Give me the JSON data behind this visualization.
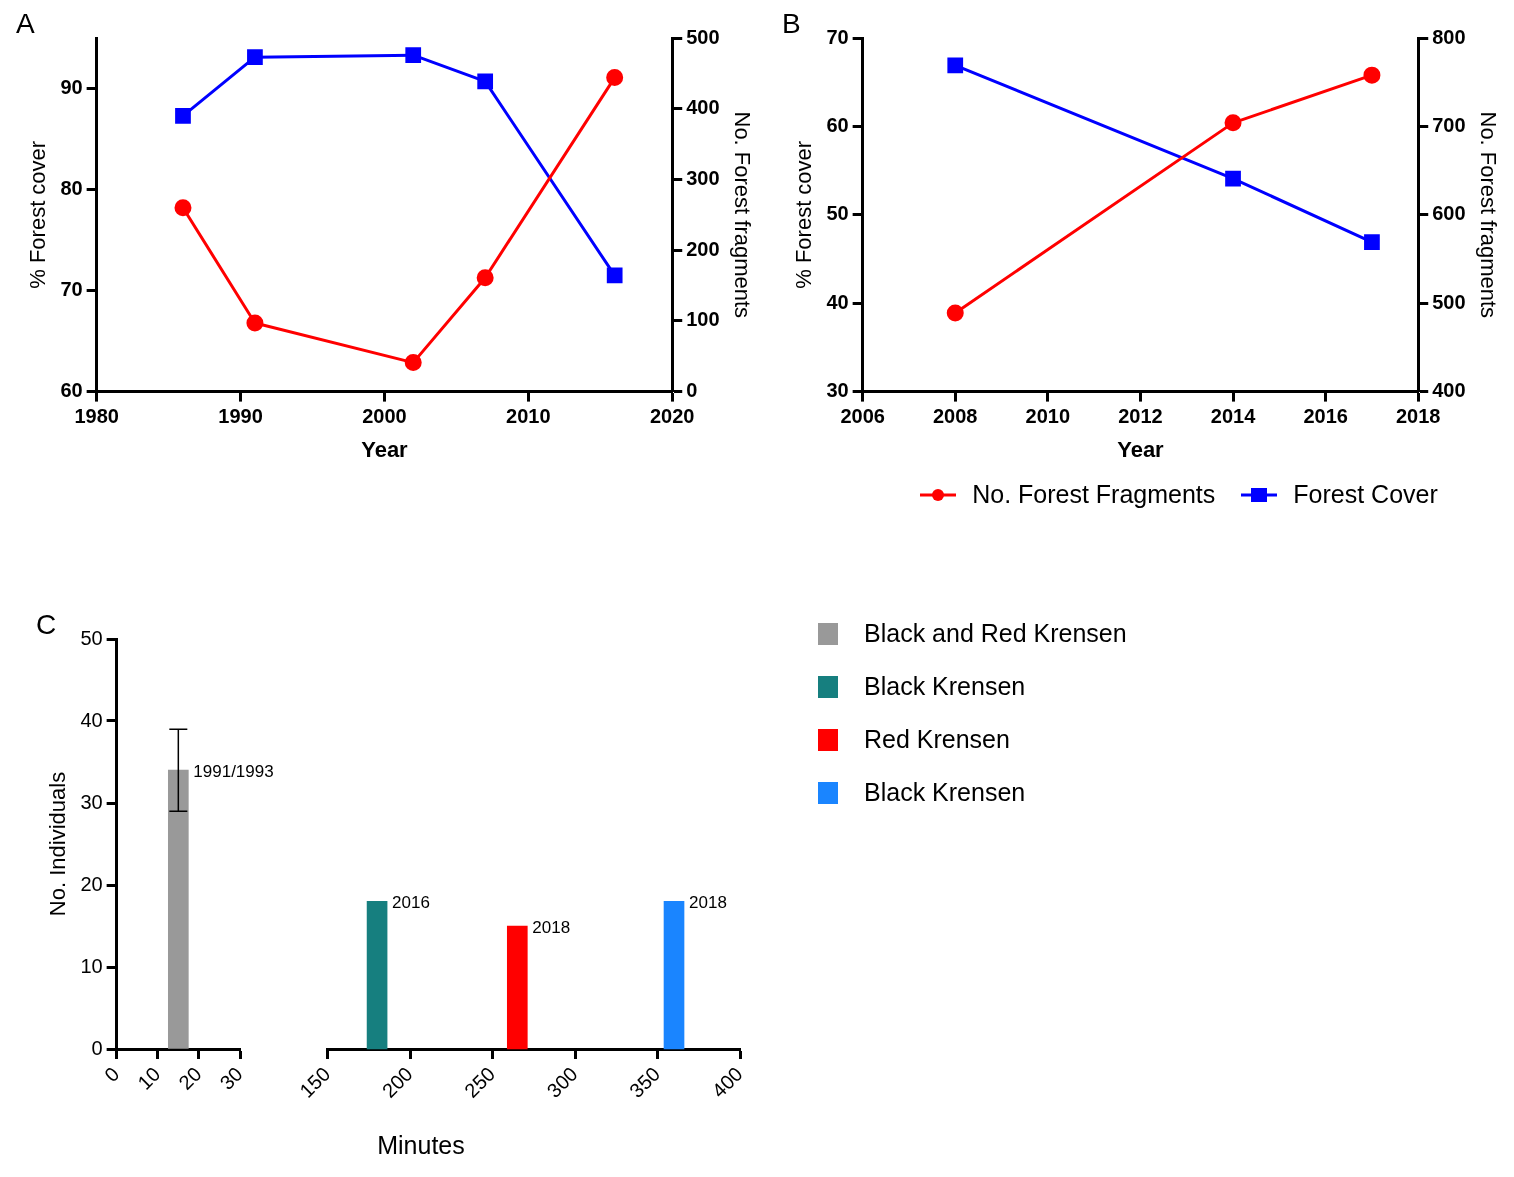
{
  "chart_data": [
    {
      "type": "line",
      "title": "A",
      "xlabel": "Year",
      "ylabel": "% Forest cover",
      "y2label": "No. Forest fragments",
      "x": [
        1986,
        1991,
        2002,
        2007,
        2016
      ],
      "xlim": [
        1980,
        2020
      ],
      "xticks": [
        1980,
        1990,
        2000,
        2010,
        2020
      ],
      "ylim": [
        60,
        95
      ],
      "yticks": [
        60,
        70,
        80,
        90
      ],
      "y2lim": [
        0,
        500
      ],
      "y2ticks": [
        0,
        100,
        200,
        300,
        400,
        500
      ],
      "series": [
        {
          "color": "#ff0000",
          "axis": "y2",
          "marker": "circle",
          "values": [
            260,
            97,
            41,
            161,
            444
          ]
        },
        {
          "color": "#0000ff",
          "marker": "square",
          "values": [
            87.3,
            93.1,
            93.3,
            90.7,
            71.5
          ]
        }
      ]
    },
    {
      "type": "line",
      "title": "B",
      "xlabel": "Year",
      "ylabel": "% Forest cover",
      "y2label": "No. Forest fragments",
      "x": [
        2008,
        2014,
        2017
      ],
      "xlim": [
        2006,
        2018
      ],
      "xticks": [
        2006,
        2008,
        2010,
        2012,
        2014,
        2016,
        2018
      ],
      "ylim": [
        30,
        70
      ],
      "yticks": [
        30,
        40,
        50,
        60,
        70
      ],
      "y2lim": [
        400,
        800
      ],
      "y2ticks": [
        400,
        500,
        600,
        700,
        800
      ],
      "legend": "bottom",
      "series": [
        {
          "name": "No. Forest Fragments",
          "color": "#ff0000",
          "axis": "y2",
          "marker": "circle",
          "values": [
            489,
            704,
            758
          ]
        },
        {
          "name": "Forest Cover",
          "color": "#0000ff",
          "marker": "square",
          "values": [
            66.9,
            54.1,
            46.9
          ]
        }
      ]
    },
    {
      "type": "bar",
      "title": "C",
      "ylabel": "No. Individuals",
      "xlim": [
        0,
        30
      ],
      "xticks": [
        0,
        10,
        20,
        30
      ],
      "ylim": [
        0,
        50
      ],
      "yticks": [
        0,
        10,
        20,
        30,
        40,
        50
      ],
      "legend": "right",
      "series": [
        {
          "name": "Black and Red Krensen",
          "color": "#999999",
          "x": [
            15
          ],
          "values": [
            34
          ],
          "errors": [
            5
          ]
        }
      ],
      "annotations": [
        {
          "text": "1991/1993",
          "x": 15,
          "y": 34
        }
      ]
    },
    {
      "type": "bar",
      "xlabel": "Minutes",
      "xlim": [
        150,
        400
      ],
      "xticks": [
        150,
        200,
        250,
        300,
        350,
        400
      ],
      "ylim": [
        0,
        50
      ],
      "yticks": [
        0,
        10,
        20,
        30,
        40,
        50
      ],
      "tick_labels": "x",
      "legend": "right",
      "series": [
        {
          "name": "Black Krensen",
          "color": "#167f7f",
          "x": [
            180
          ],
          "values": [
            18
          ]
        },
        {
          "name": "Red Krensen",
          "color": "#ff0000",
          "x": [
            265
          ],
          "values": [
            15
          ]
        },
        {
          "name": "Black Krensen",
          "color": "#1a85ff",
          "x": [
            360
          ],
          "values": [
            18
          ]
        }
      ],
      "annotations": [
        {
          "text": "2016",
          "x": 180,
          "y": 18
        },
        {
          "text": "2018",
          "x": 265,
          "y": 15
        },
        {
          "text": "2018",
          "x": 360,
          "y": 18
        }
      ]
    }
  ]
}
